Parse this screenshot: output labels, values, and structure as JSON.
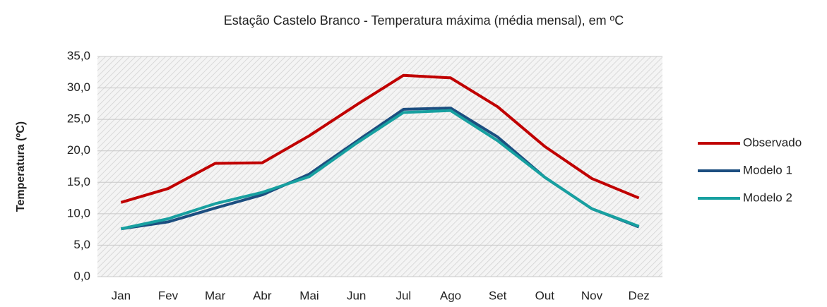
{
  "chart_data": {
    "type": "line",
    "title": "Estação Castelo Branco - Temperatura máxima (média mensal), em ºC",
    "ylabel": "Temperatura (ºC)",
    "categories": [
      "Jan",
      "Fev",
      "Mar",
      "Abr",
      "Mai",
      "Jun",
      "Jul",
      "Ago",
      "Set",
      "Out",
      "Nov",
      "Dez"
    ],
    "series": [
      {
        "name": "Observado",
        "color": "#c00000",
        "values": [
          11.8,
          14.0,
          18.0,
          18.1,
          22.4,
          27.3,
          32.0,
          31.6,
          27.0,
          20.7,
          15.6,
          12.5
        ]
      },
      {
        "name": "Modelo 1",
        "color": "#1c4e80",
        "values": [
          7.6,
          8.7,
          10.9,
          13.0,
          16.3,
          21.5,
          26.6,
          26.8,
          22.2,
          15.8,
          10.8,
          7.9
        ]
      },
      {
        "name": "Modelo 2",
        "color": "#17a0a0",
        "values": [
          7.6,
          9.2,
          11.6,
          13.4,
          15.9,
          21.2,
          26.1,
          26.4,
          21.6,
          15.8,
          10.8,
          8.0
        ]
      }
    ],
    "ylim": [
      0,
      35
    ],
    "yticks": [
      {
        "value": 0,
        "label": "0,0"
      },
      {
        "value": 5,
        "label": "5,0"
      },
      {
        "value": 10,
        "label": "10,0"
      },
      {
        "value": 15,
        "label": "15,0"
      },
      {
        "value": 20,
        "label": "20,0"
      },
      {
        "value": 25,
        "label": "25,0"
      },
      {
        "value": 30,
        "label": "30,0"
      },
      {
        "value": 35,
        "label": "35,0"
      }
    ],
    "grid": true,
    "legend": "right"
  }
}
